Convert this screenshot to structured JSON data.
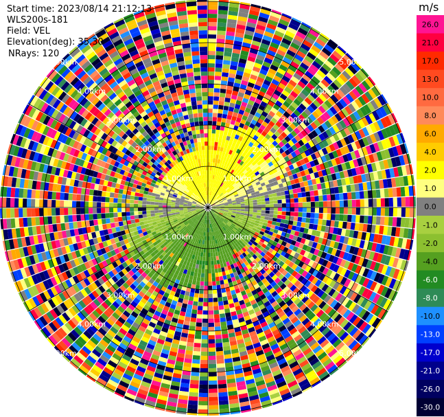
{
  "header": {
    "start_time": "Start time: 2023/08/14 21:12:13",
    "site": "WLS200s-181",
    "field": "Field: VEL",
    "elevation": "Elevation(deg): 35.30",
    "nrays": "NRays: 120"
  },
  "colorbar": {
    "unit": "m/s",
    "levels": [
      {
        "label": "26.0",
        "value": 26,
        "color": "#ff1493"
      },
      {
        "label": "21.0",
        "value": 21,
        "color": "#ff0040"
      },
      {
        "label": "17.0",
        "value": 17,
        "color": "#ff2a00"
      },
      {
        "label": "13.0",
        "value": 13,
        "color": "#ff4a20"
      },
      {
        "label": "10.0",
        "value": 10,
        "color": "#ff6a40"
      },
      {
        "label": "8.0",
        "value": 8,
        "color": "#ff8a5a"
      },
      {
        "label": "6.0",
        "value": 6,
        "color": "#ffaa00"
      },
      {
        "label": "4.0",
        "value": 4,
        "color": "#ffcc00"
      },
      {
        "label": "2.0",
        "value": 2,
        "color": "#ffff00"
      },
      {
        "label": "1.0",
        "value": 1,
        "color": "#ffff80"
      },
      {
        "label": "0.0",
        "value": 0,
        "color": "#808080"
      },
      {
        "label": "-1.0",
        "value": -1,
        "color": "#a8d040"
      },
      {
        "label": "-2.0",
        "value": -2,
        "color": "#8cc030"
      },
      {
        "label": "-4.0",
        "value": -4,
        "color": "#55a020"
      },
      {
        "label": "-6.0",
        "value": -6,
        "color": "#228b22"
      },
      {
        "label": "-8.0",
        "value": -8,
        "color": "#2e8b57"
      },
      {
        "label": "-10.0",
        "value": -10,
        "color": "#1e90ff"
      },
      {
        "label": "-13.0",
        "value": -13,
        "color": "#0040ff"
      },
      {
        "label": "-17.0",
        "value": -17,
        "color": "#0000cd"
      },
      {
        "label": "-21.0",
        "value": -21,
        "color": "#00008b"
      },
      {
        "label": "-26.0",
        "value": -26,
        "color": "#000060"
      },
      {
        "label": "-30.0",
        "value": -30,
        "color": "#000033"
      }
    ]
  },
  "chart_data": {
    "type": "heatmap",
    "projection": "polar-ppi",
    "field": "VEL",
    "units": "m/s",
    "n_rays": 120,
    "max_range_km": 5.0,
    "range_rings_km": [
      1,
      2,
      3,
      4,
      5
    ],
    "ring_labels": [
      "1.00km",
      "2.00km",
      "3.00km",
      "4.00km",
      "5.00km"
    ],
    "grid": true,
    "legend": "right"
  }
}
